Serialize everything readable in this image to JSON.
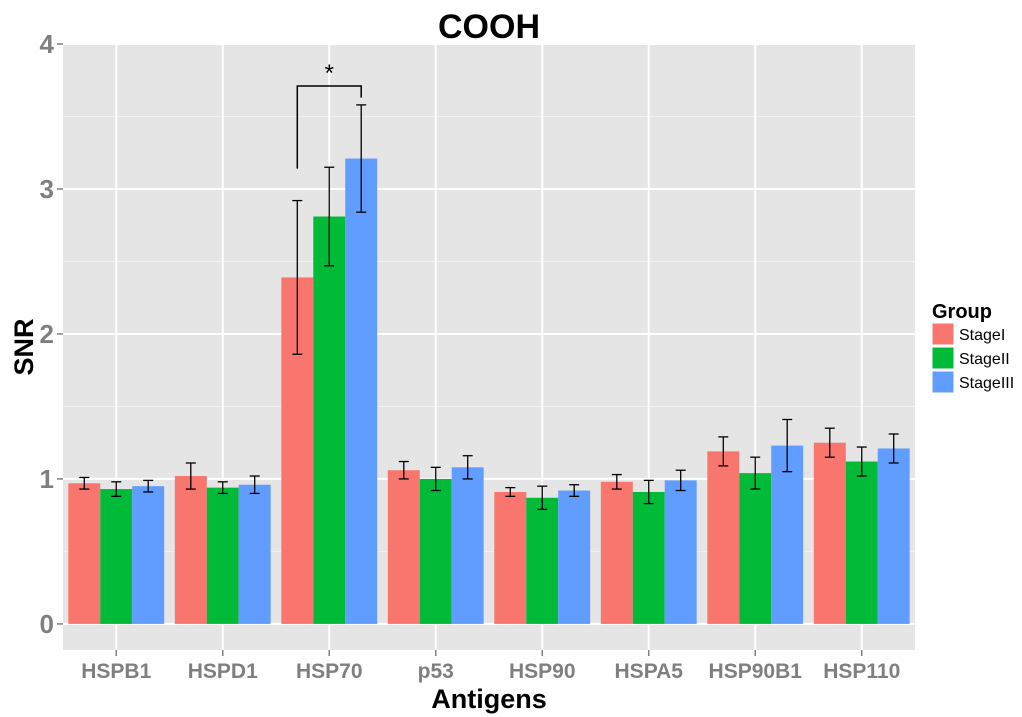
{
  "chart_data": {
    "type": "bar",
    "title": "COOH",
    "xlabel": "Antigens",
    "ylabel": "SNR",
    "ylim": [
      -0.18,
      4.0
    ],
    "yticks": [
      0,
      1,
      2,
      3,
      4
    ],
    "grid": true,
    "legend": {
      "title": "Group",
      "position": "right"
    },
    "categories": [
      "HSPB1",
      "HSPD1",
      "HSP70",
      "p53",
      "HSP90",
      "HSPA5",
      "HSP90B1",
      "HSP110"
    ],
    "series": [
      {
        "name": "StageI",
        "color": "#F8766D",
        "values": [
          0.97,
          1.02,
          2.39,
          1.06,
          0.91,
          0.98,
          1.19,
          1.25
        ],
        "error": [
          0.04,
          0.09,
          0.53,
          0.06,
          0.03,
          0.05,
          0.1,
          0.1
        ]
      },
      {
        "name": "StageII",
        "color": "#00BA38",
        "values": [
          0.93,
          0.94,
          2.81,
          1.0,
          0.87,
          0.91,
          1.04,
          1.12
        ],
        "error": [
          0.05,
          0.04,
          0.34,
          0.08,
          0.08,
          0.08,
          0.11,
          0.1
        ]
      },
      {
        "name": "StageIII",
        "color": "#619CFF",
        "values": [
          0.95,
          0.96,
          3.21,
          1.08,
          0.92,
          0.99,
          1.23,
          1.21
        ],
        "error": [
          0.04,
          0.06,
          0.37,
          0.08,
          0.04,
          0.07,
          0.18,
          0.1
        ]
      }
    ],
    "annotations": [
      {
        "type": "significance-bracket",
        "category": "HSP70",
        "from": "StageI",
        "to": "StageIII",
        "label": "*",
        "y": 3.71
      }
    ]
  }
}
